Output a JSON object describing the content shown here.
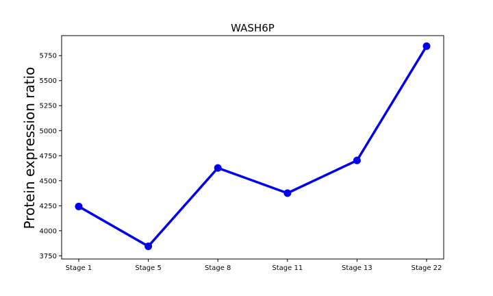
{
  "chart_data": {
    "type": "line",
    "title": "WASH6P",
    "xlabel": "",
    "ylabel": "Protein expression ratio",
    "categories": [
      "Stage 1",
      "Stage 5",
      "Stage 8",
      "Stage 11",
      "Stage 13",
      "Stage 22"
    ],
    "series": [
      {
        "values": [
          4243,
          3845,
          4628,
          4376,
          4703,
          5845
        ]
      }
    ],
    "ylim": [
      3718,
      5950
    ],
    "yticks": [
      3750,
      4000,
      4250,
      4500,
      4750,
      5000,
      5250,
      5500,
      5750
    ],
    "grid": false,
    "line_color": "#0000ee"
  }
}
